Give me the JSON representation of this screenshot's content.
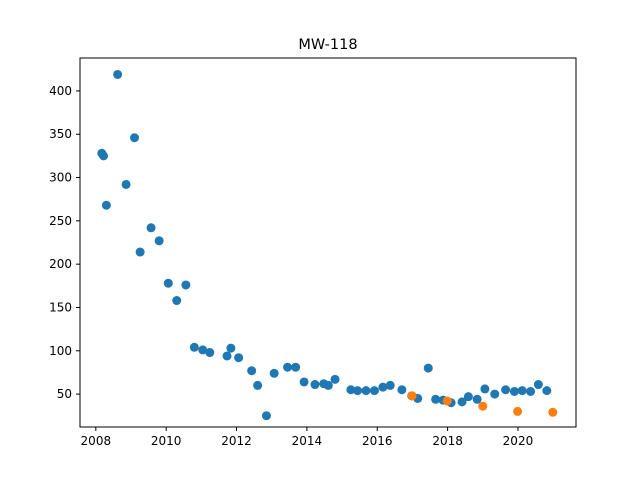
{
  "chart_data": {
    "type": "scatter",
    "title": "MW-118",
    "xlabel": "",
    "ylabel": "",
    "xlim": [
      2007.55,
      2021.65
    ],
    "ylim": [
      12,
      438
    ],
    "x_ticks": [
      2008,
      2010,
      2012,
      2014,
      2016,
      2018,
      2020
    ],
    "y_ticks": [
      50,
      100,
      150,
      200,
      250,
      300,
      350,
      400
    ],
    "grid": false,
    "legend": "none",
    "series": [
      {
        "color": "#1f77b4",
        "points": [
          [
            2008.17,
            328
          ],
          [
            2008.22,
            325
          ],
          [
            2008.3,
            268
          ],
          [
            2008.62,
            419
          ],
          [
            2008.86,
            292
          ],
          [
            2009.1,
            346
          ],
          [
            2009.26,
            214
          ],
          [
            2009.57,
            242
          ],
          [
            2009.8,
            227
          ],
          [
            2010.06,
            178
          ],
          [
            2010.3,
            158
          ],
          [
            2010.56,
            176
          ],
          [
            2010.8,
            104
          ],
          [
            2011.04,
            101
          ],
          [
            2011.24,
            98
          ],
          [
            2011.73,
            94
          ],
          [
            2011.84,
            103
          ],
          [
            2012.06,
            92
          ],
          [
            2012.43,
            77
          ],
          [
            2012.6,
            60
          ],
          [
            2012.85,
            25
          ],
          [
            2013.07,
            74
          ],
          [
            2013.45,
            81
          ],
          [
            2013.68,
            81
          ],
          [
            2013.92,
            64
          ],
          [
            2014.23,
            61
          ],
          [
            2014.48,
            62
          ],
          [
            2014.61,
            60
          ],
          [
            2014.8,
            67
          ],
          [
            2015.25,
            55
          ],
          [
            2015.44,
            54
          ],
          [
            2015.68,
            54
          ],
          [
            2015.92,
            54
          ],
          [
            2016.16,
            58
          ],
          [
            2016.37,
            60
          ],
          [
            2016.7,
            55
          ],
          [
            2016.98,
            48
          ],
          [
            2017.15,
            45
          ],
          [
            2017.45,
            80
          ],
          [
            2017.66,
            44
          ],
          [
            2017.87,
            43
          ],
          [
            2018.1,
            40
          ],
          [
            2018.41,
            41
          ],
          [
            2018.59,
            47
          ],
          [
            2018.84,
            44
          ],
          [
            2019.06,
            56
          ],
          [
            2019.34,
            50
          ],
          [
            2019.65,
            55
          ],
          [
            2019.9,
            53
          ],
          [
            2020.12,
            54
          ],
          [
            2020.36,
            53
          ],
          [
            2020.58,
            61
          ],
          [
            2020.82,
            54
          ]
        ]
      },
      {
        "color": "#ff7f0e",
        "points": [
          [
            2016.99,
            48
          ],
          [
            2017.99,
            42
          ],
          [
            2019.0,
            36
          ],
          [
            2019.99,
            30
          ],
          [
            2020.99,
            29
          ]
        ]
      }
    ]
  }
}
